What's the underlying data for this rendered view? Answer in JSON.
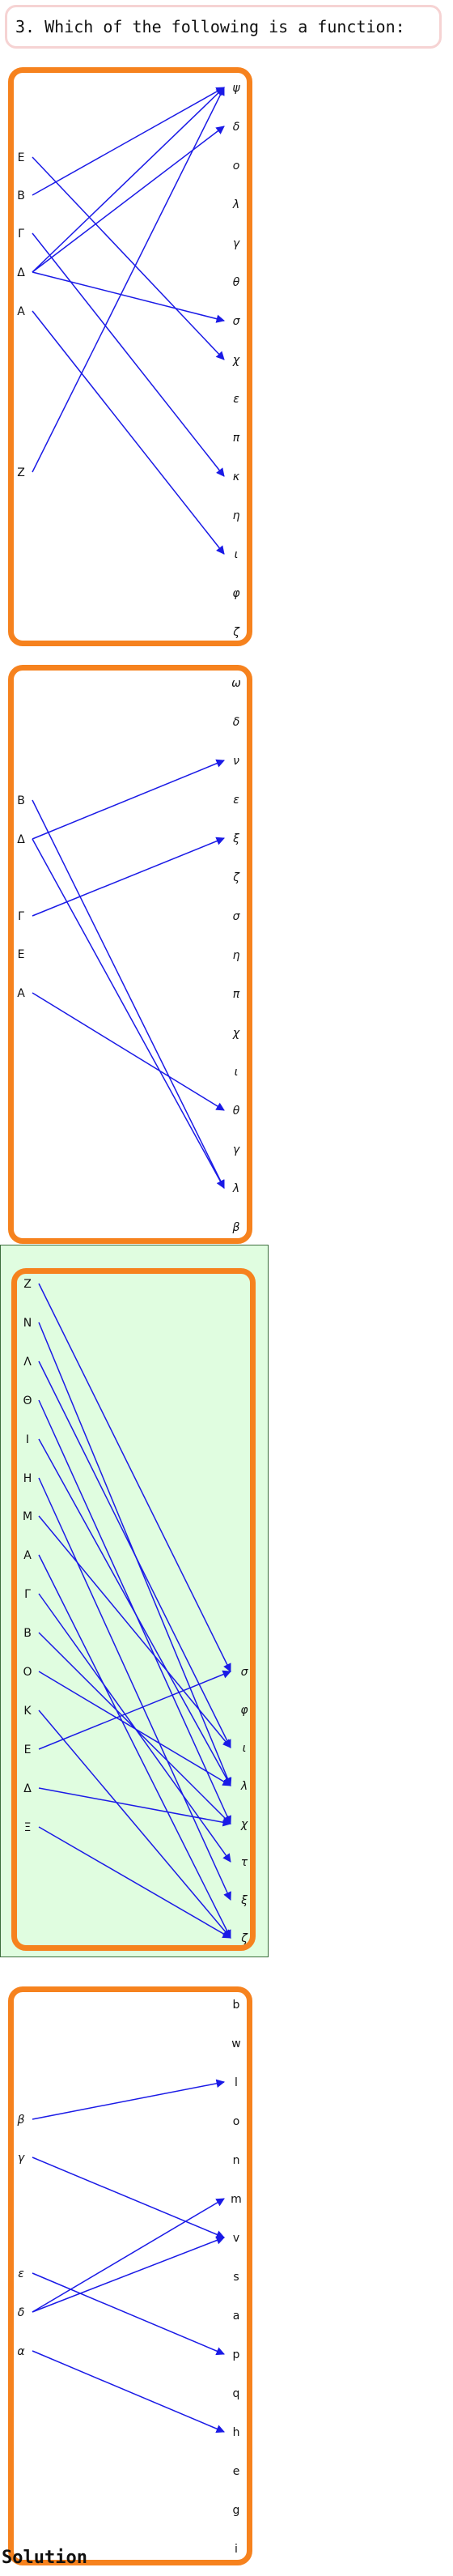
{
  "question": {
    "number": "3.",
    "text": "Which of the following is a function:"
  },
  "solution_label": "Solution",
  "colors": {
    "panel_border": "#f6821e",
    "edge": "#1a1ae6",
    "highlight_bg": "#e0fde0",
    "question_border": "#f6d3d3"
  },
  "options": [
    {
      "highlighted": false,
      "left": [
        "E",
        "B",
        "Γ",
        "Δ",
        "A",
        "Z"
      ],
      "right": [
        "ψ",
        "δ",
        "ο",
        "λ",
        "γ",
        "θ",
        "σ",
        "χ",
        "ε",
        "π",
        "κ",
        "η",
        "ι",
        "φ",
        "ζ"
      ],
      "mappings": [
        [
          "E",
          "χ"
        ],
        [
          "B",
          "ψ"
        ],
        [
          "Γ",
          "κ"
        ],
        [
          "Δ",
          "ψ"
        ],
        [
          "Δ",
          "σ"
        ],
        [
          "Δ",
          "δ"
        ],
        [
          "A",
          "ι"
        ],
        [
          "Z",
          "ψ"
        ]
      ]
    },
    {
      "highlighted": false,
      "left": [
        "B",
        "Δ",
        "Γ",
        "E",
        "A"
      ],
      "right": [
        "ω",
        "δ",
        "ν",
        "ε",
        "ξ",
        "ζ",
        "σ",
        "η",
        "π",
        "χ",
        "ι",
        "θ",
        "γ",
        "λ",
        "β"
      ],
      "mappings": [
        [
          "B",
          "λ"
        ],
        [
          "Δ",
          "ν"
        ],
        [
          "Δ",
          "λ"
        ],
        [
          "Γ",
          "ξ"
        ],
        [
          "A",
          "θ"
        ]
      ]
    },
    {
      "highlighted": true,
      "left": [
        "Z",
        "N",
        "Λ",
        "Θ",
        "I",
        "H",
        "M",
        "A",
        "Γ",
        "B",
        "O",
        "K",
        "E",
        "Δ",
        "Ξ"
      ],
      "right": [
        "σ",
        "φ",
        "ι",
        "λ",
        "χ",
        "τ",
        "ξ",
        "ζ"
      ],
      "mappings": [
        [
          "Z",
          "σ"
        ],
        [
          "N",
          "λ"
        ],
        [
          "Λ",
          "ι"
        ],
        [
          "Θ",
          "χ"
        ],
        [
          "I",
          "λ"
        ],
        [
          "H",
          "ξ"
        ],
        [
          "M",
          "ι"
        ],
        [
          "A",
          "ζ"
        ],
        [
          "Γ",
          "τ"
        ],
        [
          "B",
          "χ"
        ],
        [
          "O",
          "λ"
        ],
        [
          "K",
          "ζ"
        ],
        [
          "E",
          "σ"
        ],
        [
          "Δ",
          "χ"
        ],
        [
          "Ξ",
          "ζ"
        ]
      ]
    },
    {
      "highlighted": false,
      "left": [
        "β",
        "γ",
        "ε",
        "δ",
        "α"
      ],
      "right": [
        "b",
        "w",
        "l",
        "o",
        "n",
        "m",
        "v",
        "s",
        "a",
        "p",
        "q",
        "h",
        "e",
        "g",
        "i"
      ],
      "mappings": [
        [
          "β",
          "l"
        ],
        [
          "γ",
          "v"
        ],
        [
          "ε",
          "p"
        ],
        [
          "δ",
          "m"
        ],
        [
          "δ",
          "v"
        ],
        [
          "α",
          "h"
        ]
      ]
    }
  ]
}
